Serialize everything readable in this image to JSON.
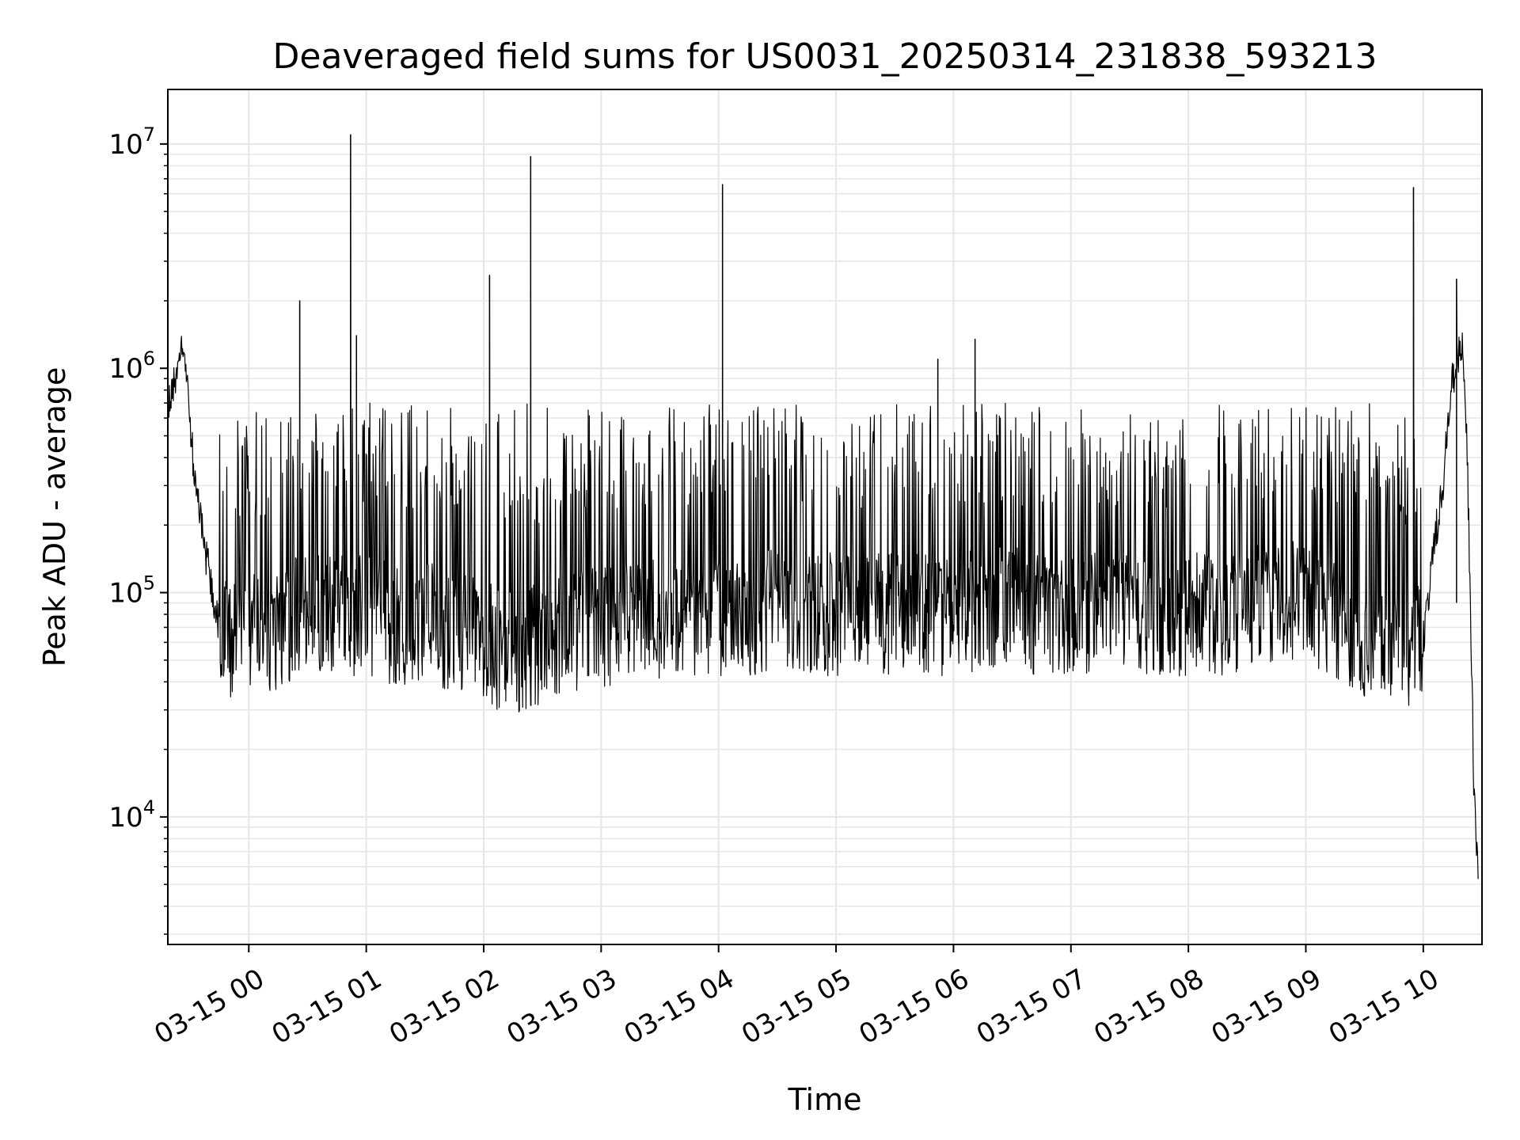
{
  "chart_data": {
    "type": "line",
    "title": "Deaveraged field sums for US0031_20250314_231838_593213",
    "xlabel": "Time",
    "ylabel": "Peak ADU - average",
    "x_scale": "time",
    "y_scale": "log",
    "xlim": [
      "2025-03-14 23:18:38",
      "2025-03-15 10:30:00"
    ],
    "ylim": [
      2700,
      17500000
    ],
    "x_ticks": [
      {
        "value": "2025-03-15 00:00",
        "label": "03-15 00"
      },
      {
        "value": "2025-03-15 01:00",
        "label": "03-15 01"
      },
      {
        "value": "2025-03-15 02:00",
        "label": "03-15 02"
      },
      {
        "value": "2025-03-15 03:00",
        "label": "03-15 03"
      },
      {
        "value": "2025-03-15 04:00",
        "label": "03-15 04"
      },
      {
        "value": "2025-03-15 05:00",
        "label": "03-15 05"
      },
      {
        "value": "2025-03-15 06:00",
        "label": "03-15 06"
      },
      {
        "value": "2025-03-15 07:00",
        "label": "03-15 07"
      },
      {
        "value": "2025-03-15 08:00",
        "label": "03-15 08"
      },
      {
        "value": "2025-03-15 09:00",
        "label": "03-15 09"
      },
      {
        "value": "2025-03-15 10:00",
        "label": "03-15 10"
      }
    ],
    "y_ticks": [
      {
        "value": 10000,
        "base": "10",
        "exp": "4"
      },
      {
        "value": 100000,
        "base": "10",
        "exp": "5"
      },
      {
        "value": 1000000,
        "base": "10",
        "exp": "6"
      },
      {
        "value": 10000000,
        "base": "10",
        "exp": "7"
      }
    ],
    "grid": true,
    "grid_minor": true,
    "legend": "none",
    "line_color": "#000000",
    "grid_color": "#e6e6e6",
    "series": [
      {
        "x": [
          "2025-03-14 23:18:38",
          "2025-03-14 23:20",
          "2025-03-14 23:23",
          "2025-03-14 23:26",
          "2025-03-14 23:28",
          "2025-03-14 23:30",
          "2025-03-14 23:32",
          "2025-03-14 23:34",
          "2025-03-14 23:36",
          "2025-03-14 23:38",
          "2025-03-14 23:40",
          "2025-03-14 23:43",
          "2025-03-14 23:46",
          "2025-03-14 23:50",
          "2025-03-14 23:55",
          "2025-03-15 00:00",
          "2025-03-15 00:10",
          "2025-03-15 00:20",
          "2025-03-15 00:30",
          "2025-03-15 00:40",
          "2025-03-15 00:50",
          "2025-03-15 01:00",
          "2025-03-15 01:10",
          "2025-03-15 01:20",
          "2025-03-15 01:30",
          "2025-03-15 01:40",
          "2025-03-15 01:50",
          "2025-03-15 02:00",
          "2025-03-15 02:10",
          "2025-03-15 02:20",
          "2025-03-15 02:30",
          "2025-03-15 02:40",
          "2025-03-15 02:50",
          "2025-03-15 03:00",
          "2025-03-15 03:15",
          "2025-03-15 03:30",
          "2025-03-15 03:45",
          "2025-03-15 04:00",
          "2025-03-15 04:15",
          "2025-03-15 04:30",
          "2025-03-15 04:45",
          "2025-03-15 05:00",
          "2025-03-15 05:15",
          "2025-03-15 05:30",
          "2025-03-15 05:45",
          "2025-03-15 06:00",
          "2025-03-15 06:15",
          "2025-03-15 06:30",
          "2025-03-15 06:45",
          "2025-03-15 07:00",
          "2025-03-15 07:15",
          "2025-03-15 07:30",
          "2025-03-15 07:45",
          "2025-03-15 08:00",
          "2025-03-15 08:15",
          "2025-03-15 08:30",
          "2025-03-15 08:45",
          "2025-03-15 09:00",
          "2025-03-15 09:10",
          "2025-03-15 09:20",
          "2025-03-15 09:30",
          "2025-03-15 09:40",
          "2025-03-15 09:50",
          "2025-03-15 10:00",
          "2025-03-15 10:05",
          "2025-03-15 10:10",
          "2025-03-15 10:14",
          "2025-03-15 10:17",
          "2025-03-15 10:20",
          "2025-03-15 10:22",
          "2025-03-15 10:24",
          "2025-03-15 10:26",
          "2025-03-15 10:28"
        ],
        "y": [
          700000,
          800000,
          900000,
          1200000,
          1000000,
          600000,
          350000,
          250000,
          200000,
          150000,
          120000,
          80000,
          70000,
          65000,
          60000,
          70000,
          65000,
          75000,
          80000,
          80000,
          80000,
          80000,
          75000,
          70000,
          75000,
          70000,
          65000,
          60000,
          55000,
          55000,
          60000,
          65000,
          70000,
          70000,
          75000,
          75000,
          80000,
          80000,
          80000,
          85000,
          80000,
          80000,
          80000,
          80000,
          80000,
          80000,
          85000,
          85000,
          80000,
          80000,
          80000,
          80000,
          80000,
          80000,
          80000,
          85000,
          90000,
          90000,
          80000,
          70000,
          60000,
          55000,
          55000,
          60000,
          150000,
          300000,
          800000,
          1100000,
          1200000,
          600000,
          100000,
          12000,
          5000
        ]
      }
    ],
    "spikes": [
      {
        "x": "2025-03-15 00:26",
        "y": 2000000
      },
      {
        "x": "2025-03-15 00:52",
        "y": 11000000
      },
      {
        "x": "2025-03-15 00:55",
        "y": 1400000
      },
      {
        "x": "2025-03-15 02:03",
        "y": 2600000
      },
      {
        "x": "2025-03-15 02:24",
        "y": 8800000
      },
      {
        "x": "2025-03-15 04:02",
        "y": 6600000
      },
      {
        "x": "2025-03-15 05:52",
        "y": 1100000
      },
      {
        "x": "2025-03-15 06:11",
        "y": 1350000
      },
      {
        "x": "2025-03-15 09:55",
        "y": 6400000
      },
      {
        "x": "2025-03-15 10:17",
        "y": 2500000
      }
    ],
    "band": {
      "base_low": 40000,
      "base_high": 110000,
      "upper_envelope": 700000,
      "start": "2025-03-14 23:45",
      "end": "2025-03-15 10:00"
    }
  }
}
